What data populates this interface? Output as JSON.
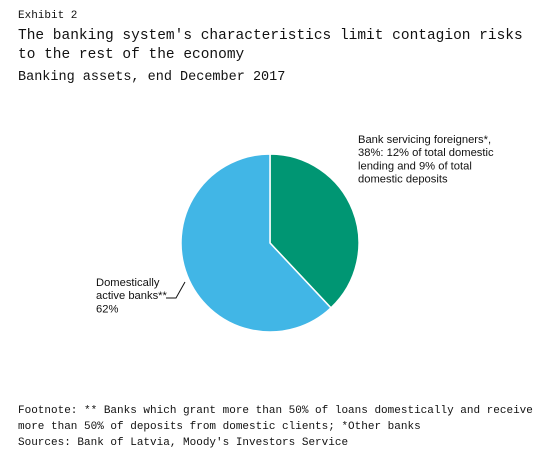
{
  "exhibit": "Exhibit 2",
  "title": "The banking system's characteristics limit contagion risks to the rest of the economy",
  "subtitle": "Banking assets, end December 2017",
  "chart_data": {
    "type": "pie",
    "slices": [
      {
        "name": "Bank servicing foreigners*",
        "value": 38,
        "color": "#009673",
        "label_lines": [
          "Bank servicing foreigners*,",
          "38%: 12% of total domestic",
          "lending and 9% of total",
          "domestic deposits"
        ]
      },
      {
        "name": "Domestically active banks**",
        "value": 62,
        "color": "#41b6e6",
        "label_lines": [
          "Domestically",
          "active banks**",
          "62%"
        ]
      }
    ]
  },
  "footnote": "Footnote: ** Banks which grant more than 50% of loans domestically and receive more than 50% of deposits from domestic clients; *Other banks",
  "sources": "Sources: Bank of Latvia, Moody's Investors Service"
}
